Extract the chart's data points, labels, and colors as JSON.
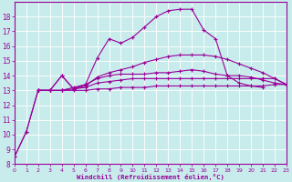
{
  "background_color": "#c8ecec",
  "line_color": "#990099",
  "xlim": [
    0,
    23
  ],
  "ylim": [
    8,
    19
  ],
  "yticks": [
    8,
    9,
    10,
    11,
    12,
    13,
    14,
    15,
    16,
    17,
    18
  ],
  "xticks": [
    0,
    1,
    2,
    3,
    4,
    5,
    6,
    7,
    8,
    9,
    10,
    11,
    12,
    13,
    14,
    15,
    16,
    17,
    18,
    19,
    20,
    21,
    22,
    23
  ],
  "xlabel": "Windchill (Refroidissement éolien,°C)",
  "lines": [
    {
      "x": [
        0,
        1,
        2,
        3,
        4,
        5,
        6,
        7,
        8,
        9,
        10,
        11,
        12,
        13,
        14,
        15,
        16,
        17,
        18,
        19,
        20,
        21,
        22,
        23
      ],
      "y": [
        8.5,
        10.2,
        13.0,
        13.0,
        13.0,
        13.0,
        13.0,
        13.1,
        13.1,
        13.2,
        13.2,
        13.2,
        13.3,
        13.3,
        13.3,
        13.3,
        13.3,
        13.3,
        13.3,
        13.3,
        13.3,
        13.3,
        13.4,
        13.4
      ]
    },
    {
      "x": [
        2,
        3,
        4,
        5,
        6,
        7,
        8,
        9,
        10,
        11,
        12,
        13,
        14,
        15,
        16,
        17,
        18,
        19,
        20,
        21,
        22,
        23
      ],
      "y": [
        13.0,
        13.0,
        14.0,
        13.1,
        13.2,
        13.5,
        13.6,
        13.7,
        13.8,
        13.8,
        13.8,
        13.8,
        13.8,
        13.8,
        13.8,
        13.8,
        13.8,
        13.8,
        13.8,
        13.8,
        13.8,
        13.4
      ]
    },
    {
      "x": [
        2,
        3,
        4,
        5,
        6,
        7,
        8,
        9,
        10,
        11,
        12,
        13,
        14,
        15,
        16,
        17,
        18,
        19,
        20,
        21,
        22,
        23
      ],
      "y": [
        13.0,
        13.0,
        13.0,
        13.2,
        13.4,
        13.8,
        14.0,
        14.1,
        14.1,
        14.1,
        14.2,
        14.2,
        14.3,
        14.4,
        14.3,
        14.1,
        14.0,
        14.0,
        13.9,
        13.7,
        13.5,
        13.4
      ]
    },
    {
      "x": [
        2,
        3,
        4,
        5,
        6,
        7,
        8,
        9,
        10,
        11,
        12,
        13,
        14,
        15,
        16,
        17,
        18,
        19,
        20,
        21,
        22,
        23
      ],
      "y": [
        13.0,
        13.0,
        13.0,
        13.1,
        13.3,
        13.9,
        14.2,
        14.4,
        14.6,
        14.9,
        15.1,
        15.3,
        15.4,
        15.4,
        15.4,
        15.3,
        15.1,
        14.8,
        14.5,
        14.2,
        13.8,
        13.4
      ]
    },
    {
      "x": [
        0,
        1,
        2,
        3,
        4,
        5,
        6,
        7,
        8,
        9,
        10,
        11,
        12,
        13,
        14,
        15,
        16,
        17,
        18,
        19,
        20,
        21
      ],
      "y": [
        8.5,
        10.2,
        13.0,
        13.0,
        14.0,
        13.1,
        13.4,
        15.2,
        16.5,
        16.2,
        16.6,
        17.3,
        18.0,
        18.4,
        18.5,
        18.5,
        17.1,
        16.5,
        14.0,
        13.5,
        13.3,
        13.2
      ]
    }
  ]
}
